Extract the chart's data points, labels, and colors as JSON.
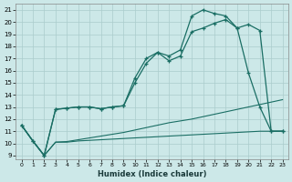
{
  "xlabel": "Humidex (Indice chaleur)",
  "background_color": "#cce8e8",
  "grid_color": "#aacccc",
  "line_color": "#1a6e64",
  "xlim_min": -0.5,
  "xlim_max": 23.5,
  "ylim_min": 8.7,
  "ylim_max": 21.5,
  "xticks": [
    0,
    1,
    2,
    3,
    4,
    5,
    6,
    7,
    8,
    9,
    10,
    11,
    12,
    13,
    14,
    15,
    16,
    17,
    18,
    19,
    20,
    21,
    22,
    23
  ],
  "yticks": [
    9,
    10,
    11,
    12,
    13,
    14,
    15,
    16,
    17,
    18,
    19,
    20,
    21
  ],
  "line1_x": [
    0,
    1,
    2,
    3,
    4,
    5,
    6,
    7,
    8,
    9,
    10,
    11,
    12,
    13,
    14,
    15,
    16,
    17,
    18,
    19,
    20,
    21,
    22,
    23
  ],
  "line1_y": [
    11.5,
    10.2,
    9.0,
    10.1,
    10.1,
    10.2,
    10.25,
    10.3,
    10.35,
    10.4,
    10.45,
    10.5,
    10.55,
    10.6,
    10.65,
    10.7,
    10.75,
    10.8,
    10.85,
    10.9,
    10.95,
    11.0,
    11.0,
    11.0
  ],
  "line2_x": [
    0,
    1,
    2,
    3,
    4,
    5,
    6,
    7,
    8,
    9,
    10,
    11,
    12,
    13,
    14,
    15,
    16,
    17,
    18,
    19,
    20,
    21,
    22,
    23
  ],
  "line2_y": [
    11.5,
    10.2,
    9.0,
    10.1,
    10.15,
    10.3,
    10.45,
    10.6,
    10.75,
    10.9,
    11.1,
    11.3,
    11.5,
    11.7,
    11.85,
    12.0,
    12.2,
    12.4,
    12.6,
    12.8,
    13.0,
    13.2,
    13.4,
    13.6
  ],
  "line3_x": [
    0,
    1,
    2,
    3,
    4,
    5,
    6,
    7,
    8,
    9,
    10,
    11,
    12,
    13,
    14,
    15,
    16,
    17,
    18,
    19,
    20,
    21,
    22,
    23
  ],
  "line3_y": [
    11.5,
    10.2,
    9.0,
    12.8,
    12.9,
    13.0,
    13.0,
    12.85,
    13.0,
    13.1,
    15.0,
    16.6,
    17.5,
    16.8,
    17.2,
    19.2,
    19.5,
    19.9,
    20.2,
    19.5,
    15.8,
    13.0,
    11.0,
    11.0
  ],
  "line4_x": [
    0,
    1,
    2,
    3,
    4,
    5,
    6,
    7,
    8,
    9,
    10,
    11,
    12,
    13,
    14,
    15,
    16,
    17,
    18,
    19,
    20,
    21,
    22,
    23
  ],
  "line4_y": [
    11.5,
    10.2,
    9.0,
    12.8,
    12.9,
    13.0,
    13.0,
    12.85,
    13.0,
    13.1,
    15.4,
    17.0,
    17.5,
    17.2,
    17.7,
    20.5,
    21.0,
    20.7,
    20.5,
    19.5,
    19.8,
    19.3,
    11.0,
    11.0
  ]
}
